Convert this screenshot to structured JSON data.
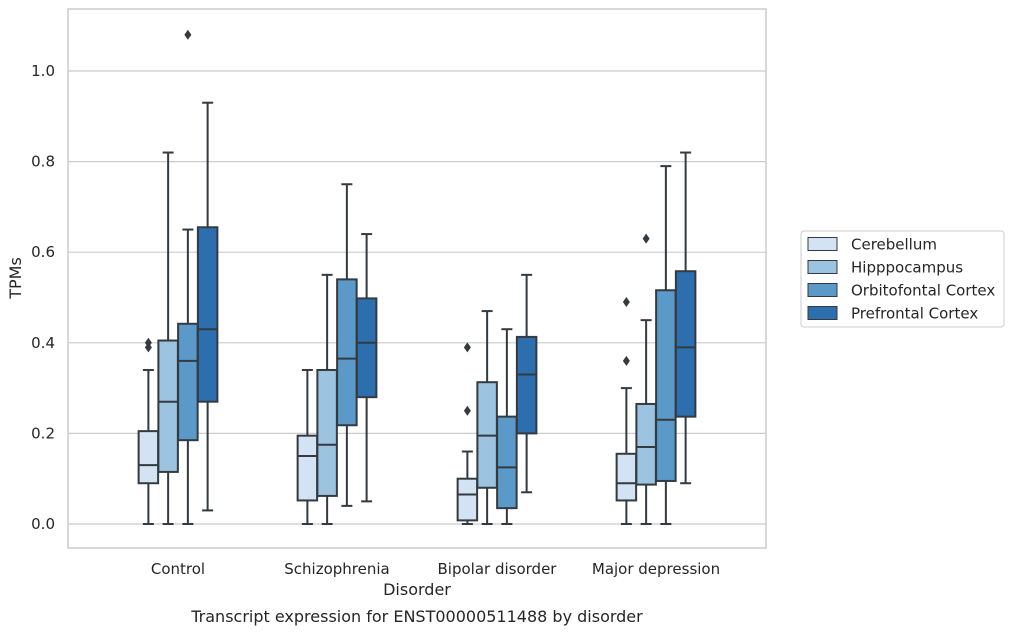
{
  "chart_data": {
    "type": "box",
    "title": "",
    "xlabel": "Disorder",
    "ylabel": "TPMs",
    "caption": "Transcript expression for ENST00000511488 by disorder",
    "ylim": [
      -0.05,
      1.14
    ],
    "yticks": [
      0.0,
      0.2,
      0.4,
      0.6,
      0.8,
      1.0
    ],
    "ytick_labels": [
      "0.0",
      "0.2",
      "0.4",
      "0.6",
      "0.8",
      "1.0"
    ],
    "grid": "horizontal",
    "legend_position": "right",
    "categories": [
      "Control",
      "Schizophrenia",
      "Bipolar disorder",
      "Major depression"
    ],
    "series": [
      {
        "name": "Cerebellum",
        "color": "#d4e3f3",
        "boxes": [
          {
            "whisker_low": 0.0,
            "q1": 0.09,
            "median": 0.13,
            "q3": 0.205,
            "whisker_high": 0.34,
            "outliers": [
              0.39,
              0.4
            ]
          },
          {
            "whisker_low": 0.0,
            "q1": 0.052,
            "median": 0.15,
            "q3": 0.195,
            "whisker_high": 0.34,
            "outliers": []
          },
          {
            "whisker_low": 0.0,
            "q1": 0.008,
            "median": 0.065,
            "q3": 0.1,
            "whisker_high": 0.16,
            "outliers": [
              0.25,
              0.39
            ]
          },
          {
            "whisker_low": 0.0,
            "q1": 0.052,
            "median": 0.09,
            "q3": 0.155,
            "whisker_high": 0.3,
            "outliers": [
              0.36,
              0.49
            ]
          }
        ]
      },
      {
        "name": "Hipppocampus",
        "color": "#9cc3df",
        "boxes": [
          {
            "whisker_low": 0.0,
            "q1": 0.115,
            "median": 0.27,
            "q3": 0.405,
            "whisker_high": 0.82,
            "outliers": []
          },
          {
            "whisker_low": 0.0,
            "q1": 0.062,
            "median": 0.175,
            "q3": 0.34,
            "whisker_high": 0.55,
            "outliers": []
          },
          {
            "whisker_low": 0.0,
            "q1": 0.08,
            "median": 0.195,
            "q3": 0.313,
            "whisker_high": 0.47,
            "outliers": []
          },
          {
            "whisker_low": 0.0,
            "q1": 0.087,
            "median": 0.17,
            "q3": 0.265,
            "whisker_high": 0.45,
            "outliers": [
              0.63
            ]
          }
        ]
      },
      {
        "name": "Orbitofontal Cortex",
        "color": "#5b9ac8",
        "boxes": [
          {
            "whisker_low": 0.0,
            "q1": 0.185,
            "median": 0.36,
            "q3": 0.442,
            "whisker_high": 0.65,
            "outliers": [
              1.08
            ]
          },
          {
            "whisker_low": 0.04,
            "q1": 0.218,
            "median": 0.365,
            "q3": 0.54,
            "whisker_high": 0.75,
            "outliers": []
          },
          {
            "whisker_low": 0.0,
            "q1": 0.035,
            "median": 0.125,
            "q3": 0.237,
            "whisker_high": 0.43,
            "outliers": []
          },
          {
            "whisker_low": 0.0,
            "q1": 0.095,
            "median": 0.23,
            "q3": 0.516,
            "whisker_high": 0.79,
            "outliers": []
          }
        ]
      },
      {
        "name": "Prefrontal Cortex",
        "color": "#2d6fae",
        "boxes": [
          {
            "whisker_low": 0.03,
            "q1": 0.27,
            "median": 0.43,
            "q3": 0.655,
            "whisker_high": 0.93,
            "outliers": []
          },
          {
            "whisker_low": 0.05,
            "q1": 0.28,
            "median": 0.4,
            "q3": 0.498,
            "whisker_high": 0.64,
            "outliers": []
          },
          {
            "whisker_low": 0.07,
            "q1": 0.2,
            "median": 0.33,
            "q3": 0.413,
            "whisker_high": 0.55,
            "outliers": []
          },
          {
            "whisker_low": 0.09,
            "q1": 0.237,
            "median": 0.39,
            "q3": 0.558,
            "whisker_high": 0.82,
            "outliers": []
          }
        ]
      }
    ]
  }
}
